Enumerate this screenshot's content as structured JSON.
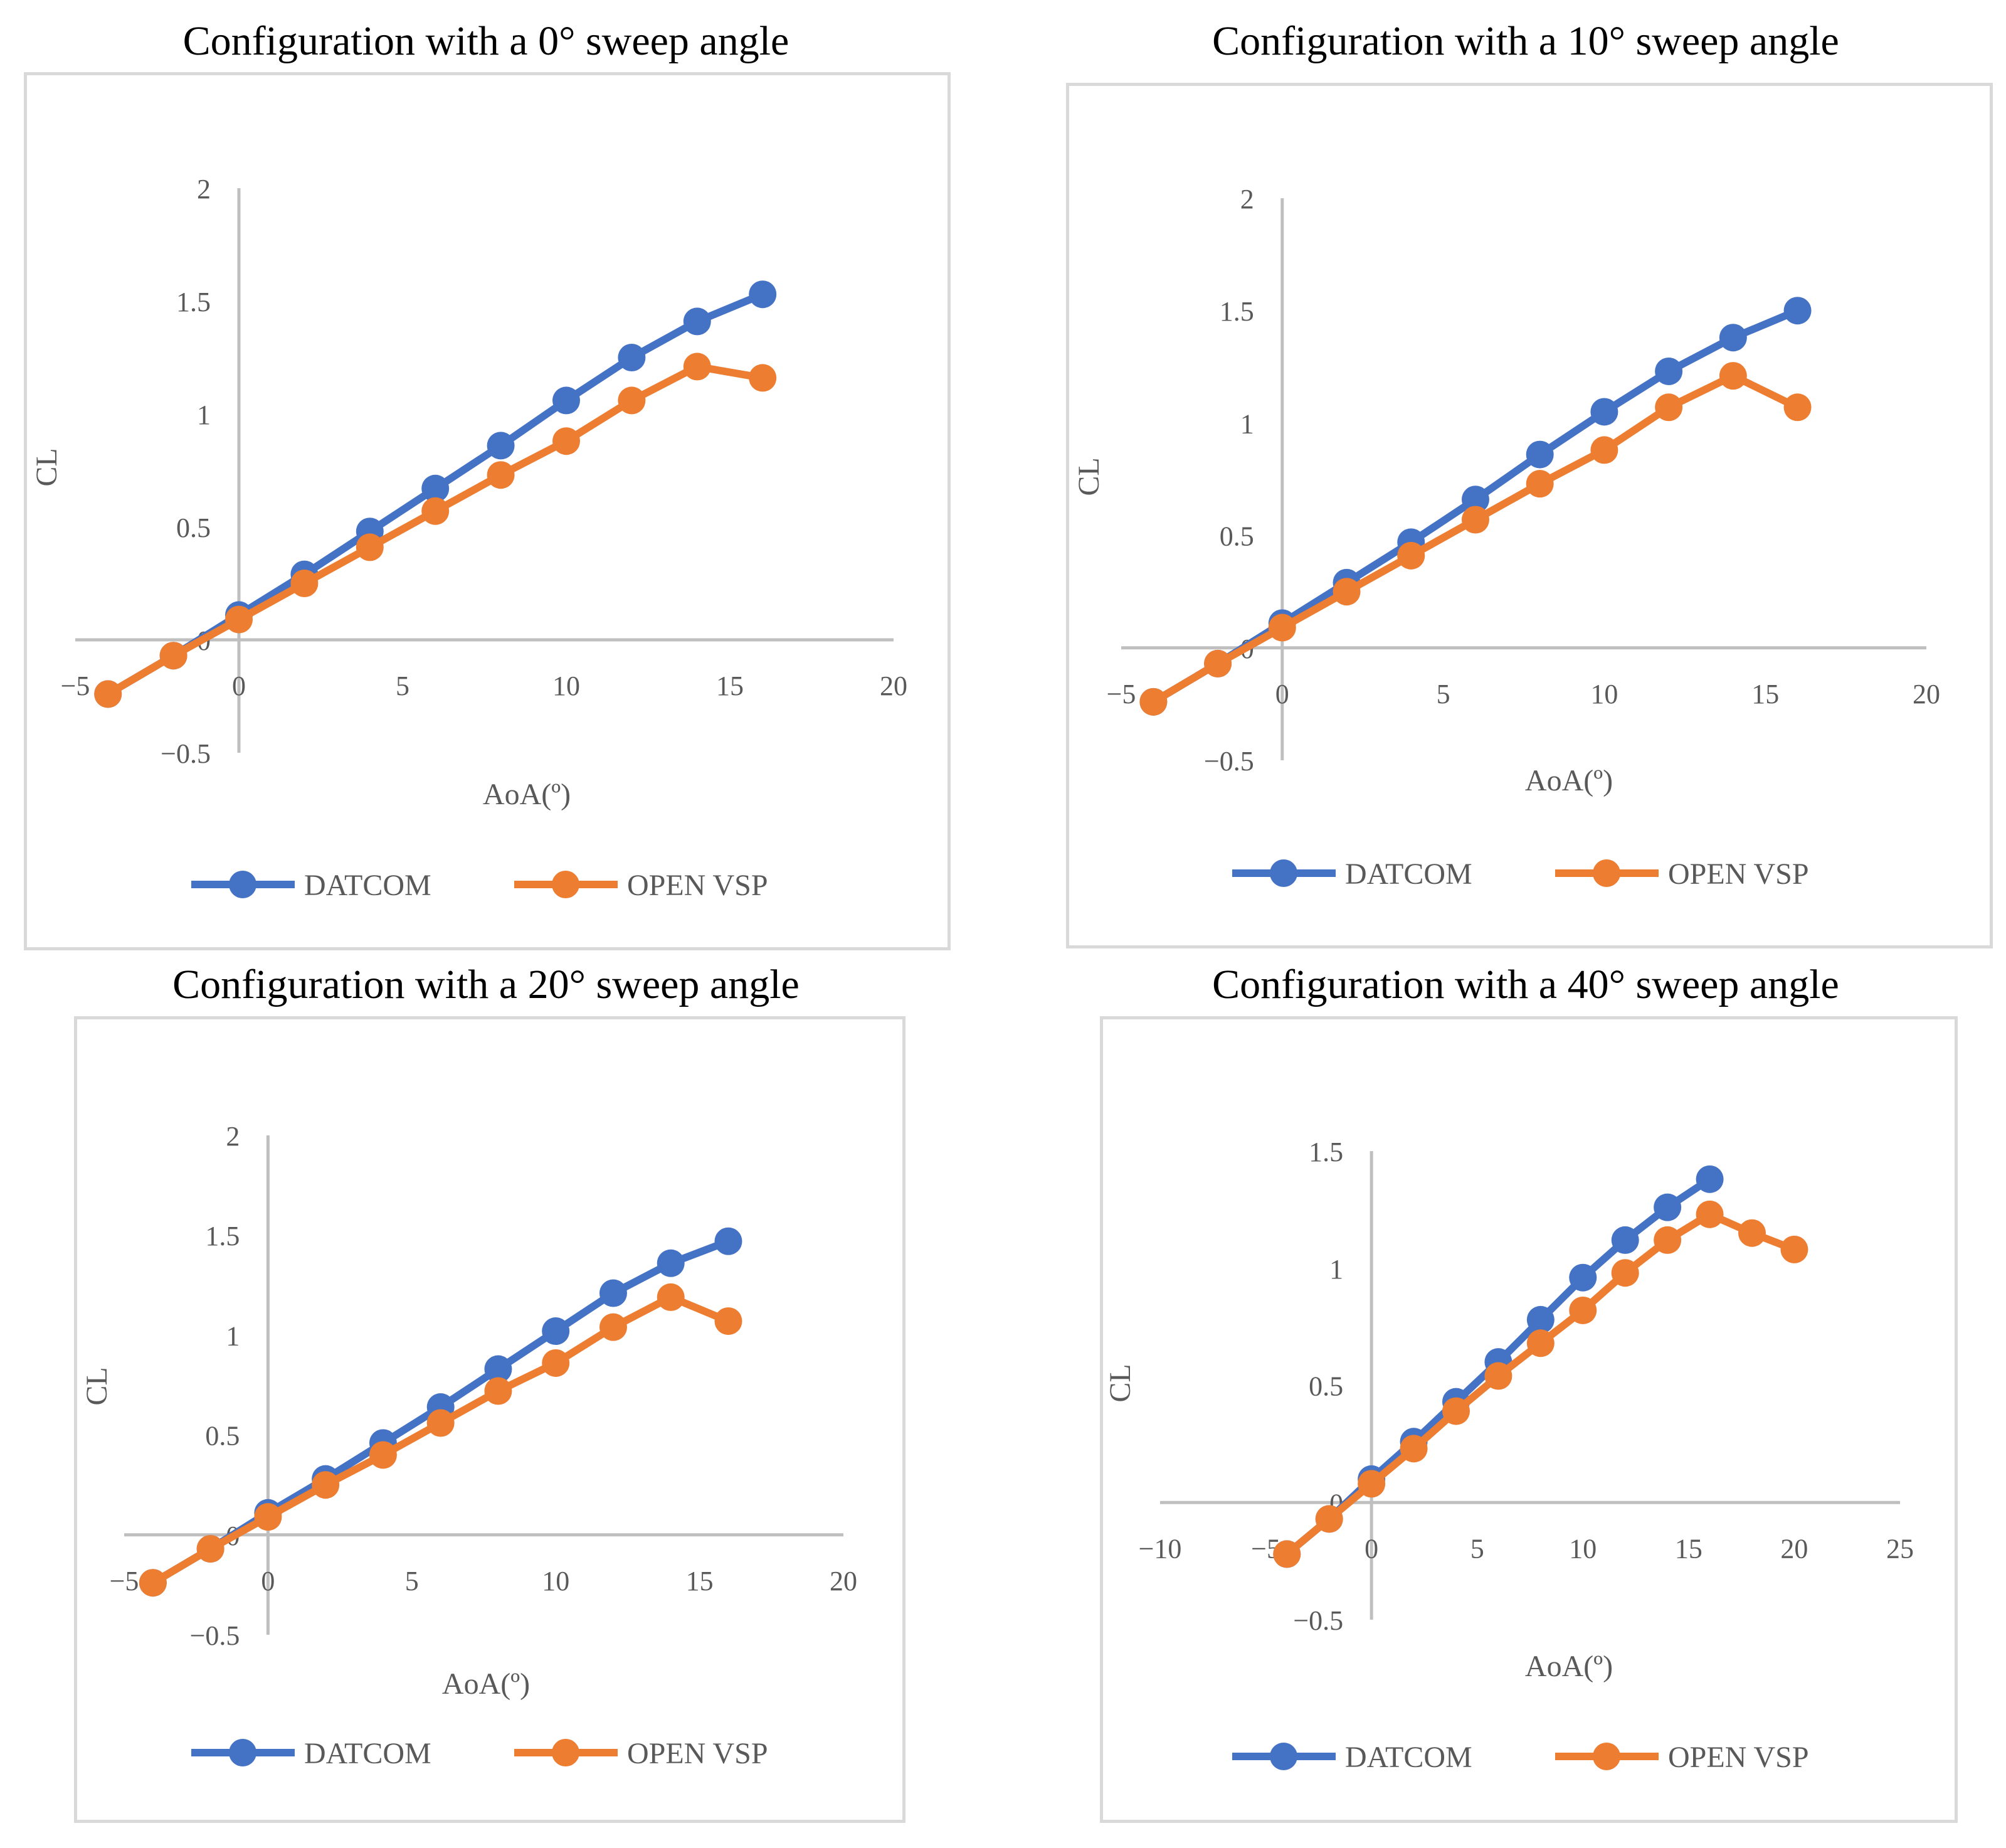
{
  "colors": {
    "datcom": "#4472C4",
    "openvsp": "#ED7D31",
    "axis": "#BFBFBF",
    "text": "#595959"
  },
  "chart_data": [
    {
      "type": "line",
      "title": "Configuration with a 0° sweep angle",
      "xlabel": "AoA(º)",
      "ylabel": "CL",
      "xlim": [
        -5,
        20
      ],
      "ylim": [
        -0.5,
        2
      ],
      "xticks": [
        -5,
        0,
        5,
        10,
        15,
        20
      ],
      "yticks": [
        -0.5,
        0,
        0.5,
        1,
        1.5,
        2
      ],
      "x_tick_labels": [
        "−5",
        "0",
        "5",
        "10",
        "15",
        "20"
      ],
      "y_tick_labels": [
        "−0.5",
        "0",
        "0.5",
        "1",
        "1.5",
        "2"
      ],
      "x": [
        -4,
        -2,
        0,
        2,
        4,
        6,
        8,
        10,
        12,
        14,
        16
      ],
      "series": [
        {
          "name": "DATCOM",
          "values": [
            -0.24,
            -0.07,
            0.11,
            0.29,
            0.48,
            0.67,
            0.86,
            1.06,
            1.25,
            1.41,
            1.53
          ]
        },
        {
          "name": "OPEN VSP",
          "values": [
            -0.24,
            -0.07,
            0.09,
            0.25,
            0.41,
            0.57,
            0.73,
            0.88,
            1.06,
            1.21,
            1.16
          ]
        }
      ],
      "legend": "bottom"
    },
    {
      "type": "line",
      "title": "Configuration with a 10° sweep angle",
      "xlabel": "AoA(º)",
      "ylabel": "CL",
      "xlim": [
        -5,
        20
      ],
      "ylim": [
        -0.5,
        2
      ],
      "xticks": [
        -5,
        0,
        5,
        10,
        15,
        20
      ],
      "yticks": [
        -0.5,
        0,
        0.5,
        1,
        1.5,
        2
      ],
      "x_tick_labels": [
        "−5",
        "0",
        "5",
        "10",
        "15",
        "20"
      ],
      "y_tick_labels": [
        "−0.5",
        "0",
        "0.5",
        "1",
        "1.5",
        "2"
      ],
      "x": [
        -4,
        -2,
        0,
        2,
        4,
        6,
        8,
        10,
        12,
        14,
        16
      ],
      "series": [
        {
          "name": "DATCOM",
          "values": [
            -0.24,
            -0.07,
            0.11,
            0.29,
            0.47,
            0.66,
            0.86,
            1.05,
            1.23,
            1.38,
            1.5
          ]
        },
        {
          "name": "OPEN VSP",
          "values": [
            -0.24,
            -0.07,
            0.09,
            0.25,
            0.41,
            0.57,
            0.73,
            0.88,
            1.07,
            1.21,
            1.07
          ]
        }
      ],
      "legend": "bottom"
    },
    {
      "type": "line",
      "title": "Configuration with a 20° sweep angle",
      "xlabel": "AoA(º)",
      "ylabel": "CL",
      "xlim": [
        -5,
        20
      ],
      "ylim": [
        -0.5,
        2
      ],
      "xticks": [
        -5,
        0,
        5,
        10,
        15,
        20
      ],
      "yticks": [
        -0.5,
        0,
        0.5,
        1,
        1.5,
        2
      ],
      "x_tick_labels": [
        "−5",
        "0",
        "5",
        "10",
        "15",
        "20"
      ],
      "y_tick_labels": [
        "−0.5",
        "0",
        "0.5",
        "1",
        "1.5",
        "2"
      ],
      "x": [
        -4,
        -2,
        0,
        2,
        4,
        6,
        8,
        10,
        12,
        14,
        16
      ],
      "series": [
        {
          "name": "DATCOM",
          "values": [
            -0.24,
            -0.07,
            0.11,
            0.28,
            0.46,
            0.64,
            0.83,
            1.02,
            1.21,
            1.36,
            1.47
          ]
        },
        {
          "name": "OPEN VSP",
          "values": [
            -0.24,
            -0.07,
            0.09,
            0.25,
            0.4,
            0.56,
            0.72,
            0.86,
            1.04,
            1.19,
            1.07
          ]
        }
      ],
      "legend": "bottom"
    },
    {
      "type": "line",
      "title": "Configuration with a 40° sweep angle",
      "xlabel": "AoA(º)",
      "ylabel": "CL",
      "xlim": [
        -10,
        25
      ],
      "ylim": [
        -0.5,
        1.5
      ],
      "xticks": [
        -10,
        -5,
        0,
        5,
        10,
        15,
        20,
        25
      ],
      "yticks": [
        -0.5,
        0,
        0.5,
        1,
        1.5
      ],
      "x_tick_labels": [
        "−10",
        "−5",
        "0",
        "5",
        "10",
        "15",
        "20",
        "25"
      ],
      "y_tick_labels": [
        "−0.5",
        "0",
        "0.5",
        "1",
        "1.5"
      ],
      "x": [
        -4,
        -2,
        0,
        2,
        4,
        6,
        8,
        10,
        12,
        14,
        16,
        18,
        20
      ],
      "series": [
        {
          "name": "DATCOM",
          "x": [
            -4,
            -2,
            0,
            2,
            4,
            6,
            8,
            10,
            12,
            14,
            16
          ],
          "values": [
            -0.22,
            -0.07,
            0.1,
            0.26,
            0.43,
            0.6,
            0.78,
            0.96,
            1.12,
            1.26,
            1.38
          ]
        },
        {
          "name": "OPEN VSP",
          "x": [
            -4,
            -2,
            0,
            2,
            4,
            6,
            8,
            10,
            12,
            14,
            16,
            18,
            20
          ],
          "values": [
            -0.22,
            -0.07,
            0.08,
            0.23,
            0.39,
            0.54,
            0.68,
            0.82,
            0.98,
            1.12,
            1.23,
            1.15,
            1.08
          ]
        }
      ],
      "legend": "bottom"
    }
  ]
}
